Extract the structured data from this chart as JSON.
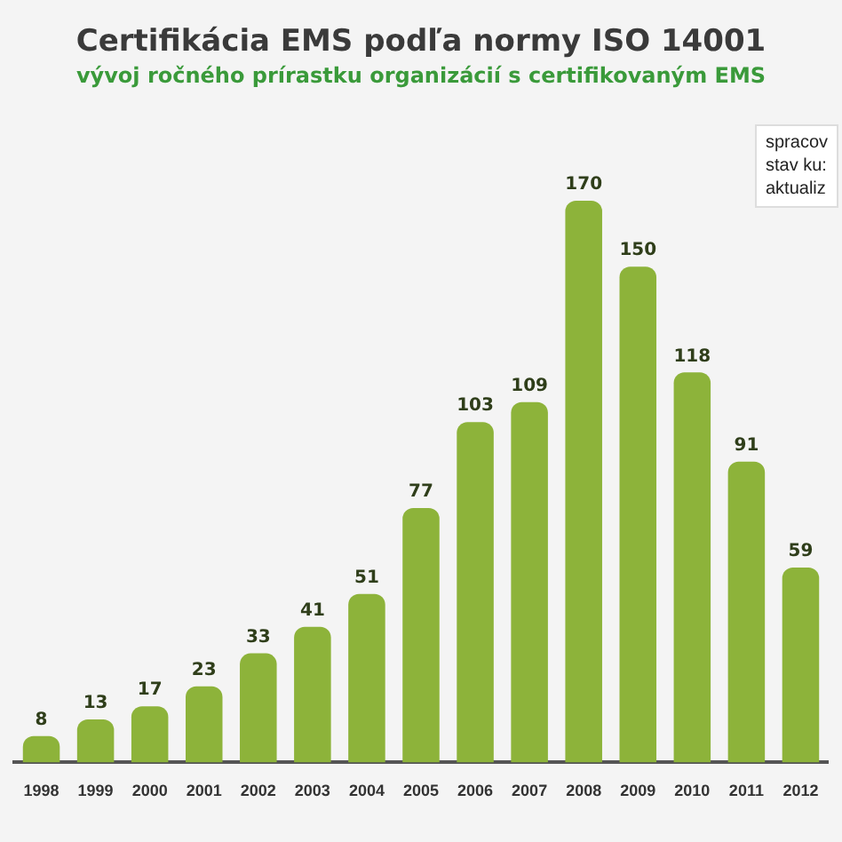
{
  "chart_data": {
    "type": "bar",
    "title": "Certifikácia EMS podľa normy ISO 14001",
    "subtitle": "vývoj ročného prírastku organizácií s certifikovaným EMS",
    "categories": [
      "1998",
      "1999",
      "2000",
      "2001",
      "2002",
      "2003",
      "2004",
      "2005",
      "2006",
      "2007",
      "2008",
      "2009",
      "2010",
      "2011",
      "2012"
    ],
    "values": [
      8,
      13,
      17,
      23,
      33,
      41,
      51,
      77,
      103,
      109,
      170,
      150,
      118,
      91,
      59
    ],
    "color": "#8db33a",
    "data_labels": true,
    "legend": false,
    "annotations": [
      "spracov",
      "stav ku:",
      "aktualiz"
    ]
  }
}
